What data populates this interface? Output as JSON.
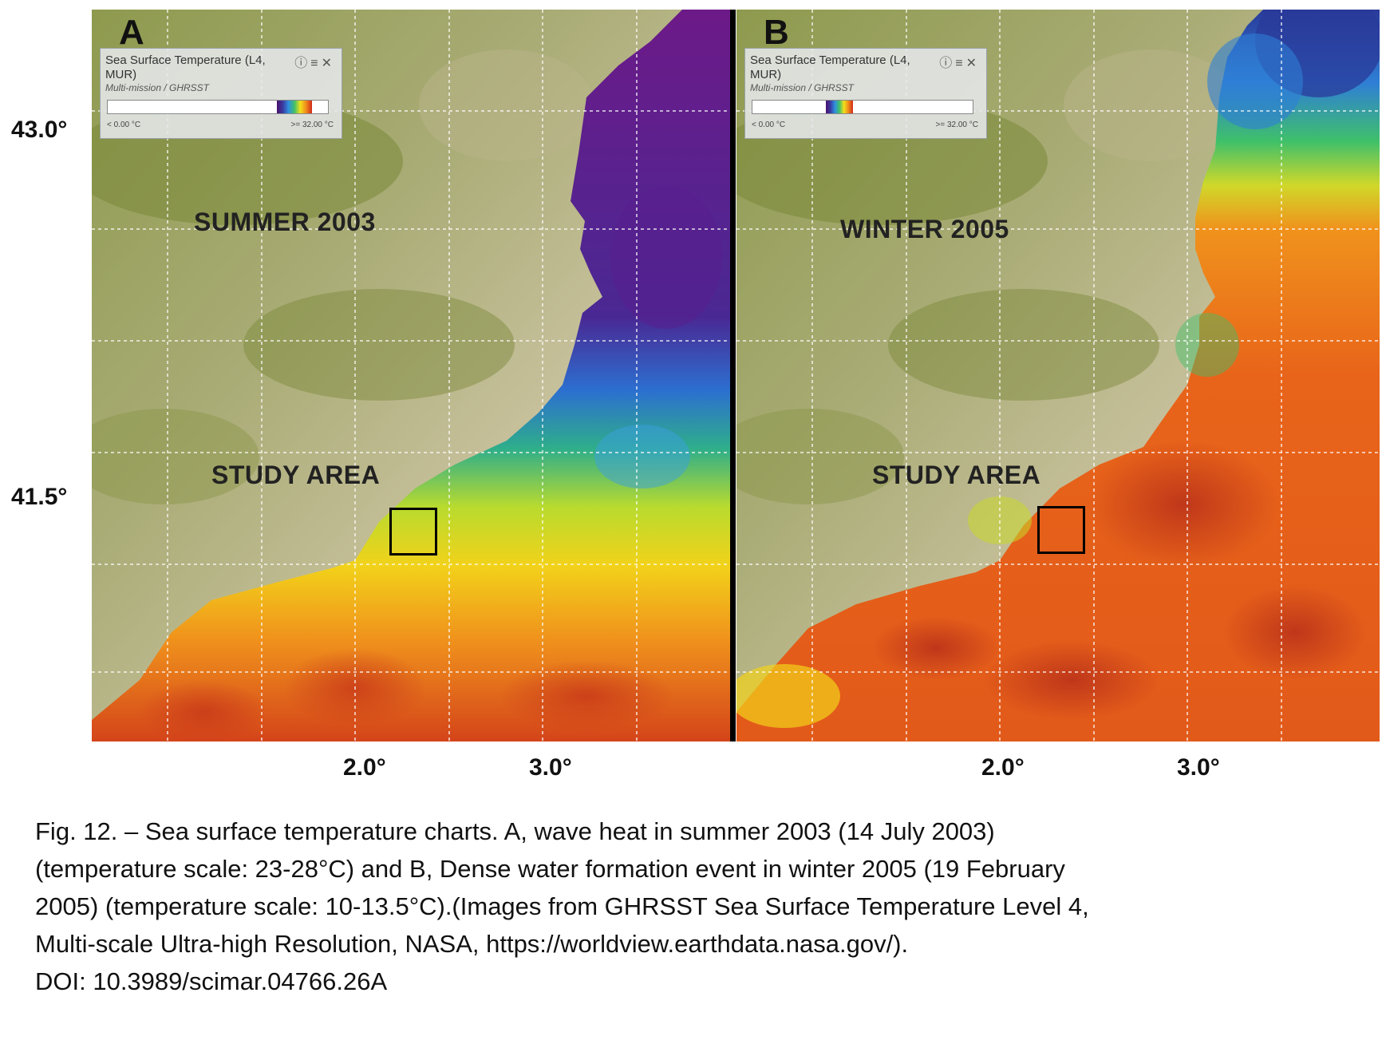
{
  "panels": [
    {
      "letter": "A",
      "season_label": "SUMMER 2003",
      "study_label": "STUDY AREA",
      "legend": {
        "title": "Sea Surface Temperature (L4, MUR)",
        "subtitle": "Multi-mission / GHRSST",
        "min": "< 0.00 °C",
        "max": ">= 32.00 °C",
        "icons": [
          "info-icon",
          "settings-icon",
          "close-icon"
        ]
      },
      "sea_colors": [
        "#6a1a86",
        "#3a2f9a",
        "#2f7fd6",
        "#2fae7a",
        "#a8d830",
        "#f2d21a",
        "#f29a1c",
        "#e2601a",
        "#c8381a"
      ]
    },
    {
      "letter": "B",
      "season_label": "WINTER 2005",
      "study_label": "STUDY AREA",
      "legend": {
        "title": "Sea Surface Temperature (L4, MUR)",
        "subtitle": "Multi-mission / GHRSST",
        "min": "< 0.00 °C",
        "max": ">= 32.00 °C",
        "icons": [
          "info-icon",
          "settings-icon",
          "close-icon"
        ]
      },
      "sea_colors": [
        "#2a3a9a",
        "#2f7fd6",
        "#3fc06a",
        "#c8d82a",
        "#f2a01c",
        "#e8641a",
        "#d5451a",
        "#b8301a"
      ]
    }
  ],
  "axes": {
    "latitudes": [
      "43.0°",
      "41.5°"
    ],
    "longitudes": [
      "2.0°",
      "3.0°"
    ]
  },
  "caption": {
    "lines": [
      "Fig. 12. – Sea surface temperature charts. A, wave heat in summer 2003 (14 July 2003)",
      "(temperature scale: 23-28°C) and B, Dense water formation event in winter 2005 (19 February",
      "2005) (temperature scale: 10-13.5°C).(Images from GHRSST Sea Surface Temperature Level 4,",
      "Multi-scale Ultra-high Resolution, NASA, https://worldview.earthdata.nasa.gov/).",
      "DOI: 10.3989/scimar.04766.26A"
    ]
  },
  "colors": {
    "land_dark": "#7c8a3a",
    "land_mid": "#a4a472",
    "land_light": "#e6dccb",
    "grid": "#ffffff"
  }
}
